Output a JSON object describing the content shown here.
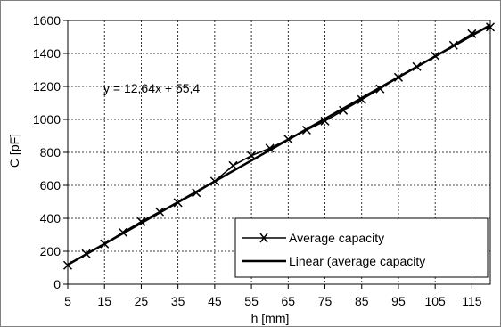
{
  "chart_data": {
    "type": "line",
    "title": "",
    "xlabel": "h [mm]",
    "ylabel": "C [pF]",
    "xlim": [
      5,
      120
    ],
    "ylim": [
      0,
      1600
    ],
    "x_ticks": [
      5,
      15,
      25,
      35,
      45,
      55,
      65,
      75,
      85,
      95,
      105,
      115
    ],
    "y_ticks": [
      0,
      200,
      400,
      600,
      800,
      1000,
      1200,
      1400,
      1600
    ],
    "grid": true,
    "legend_position": "bottom-right",
    "annotation": "y = 12,64x + 55,4",
    "series": [
      {
        "name": "Average capacity",
        "marker": "x",
        "x": [
          5,
          10,
          15,
          20,
          25,
          30,
          35,
          40,
          45,
          50,
          55,
          60,
          65,
          70,
          75,
          80,
          85,
          90,
          95,
          100,
          105,
          110,
          115,
          120
        ],
        "y": [
          115,
          185,
          245,
          315,
          380,
          440,
          495,
          555,
          625,
          720,
          780,
          825,
          880,
          935,
          990,
          1055,
          1120,
          1185,
          1255,
          1320,
          1385,
          1450,
          1520,
          1560
        ]
      },
      {
        "name": "Linear (average capacity",
        "marker": "none",
        "slope": 12.64,
        "intercept": 55.4
      }
    ]
  }
}
